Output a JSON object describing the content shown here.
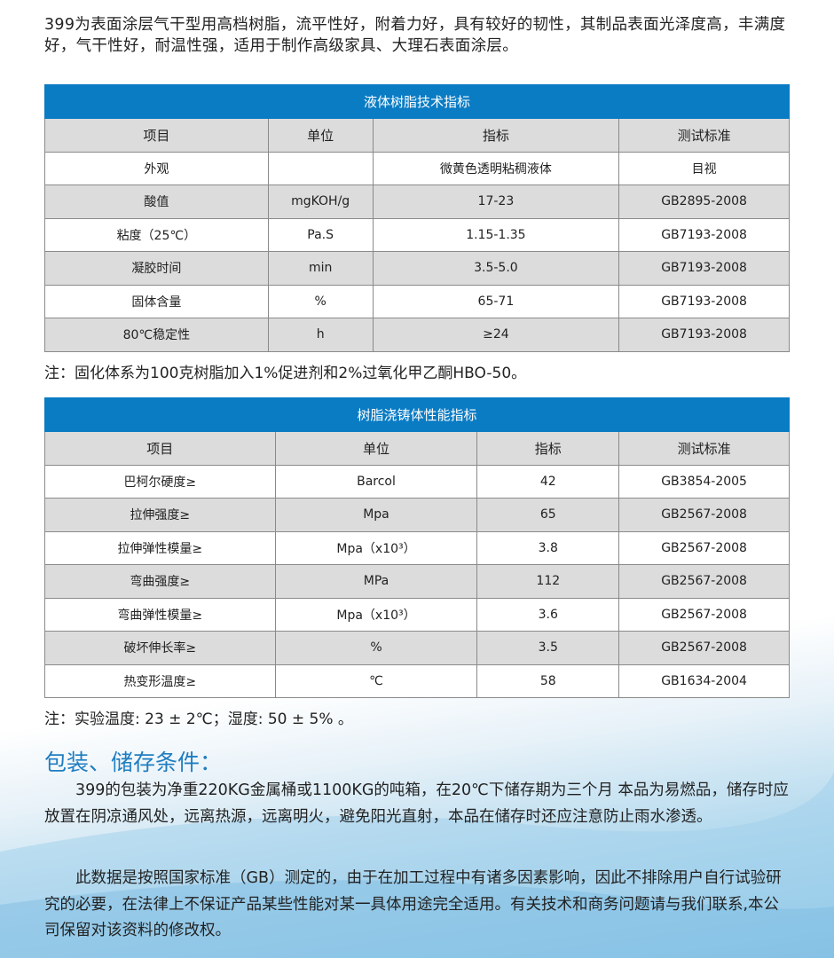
{
  "intro": "399为表面涂层气干型用高档树脂，流平性好，附着力好，具有较好的韧性，其制品表面光泽度高，丰满度好，气干性好，耐温性强，适用于制作高级家具、大理石表面涂层。",
  "table1": {
    "title": "液体树脂技术指标",
    "headers": [
      "项目",
      "单位",
      "指标",
      "测试标准"
    ],
    "rows": [
      [
        "外观",
        "",
        "微黄色透明粘稠液体",
        "目视"
      ],
      [
        "酸值",
        "mgKOH/g",
        "17-23",
        "GB2895-2008"
      ],
      [
        "粘度（25℃）",
        "Pa.S",
        "1.15-1.35",
        "GB7193-2008"
      ],
      [
        "凝胶时间",
        "min",
        "3.5-5.0",
        "GB7193-2008"
      ],
      [
        "固体含量",
        "%",
        "65-71",
        "GB7193-2008"
      ],
      [
        "80℃稳定性",
        "h",
        "≥24",
        "GB7193-2008"
      ]
    ]
  },
  "note1": "注：固化体系为100克树脂加入1%促进剂和2%过氧化甲乙酮HBO-50。",
  "table2": {
    "title": "树脂浇铸体性能指标",
    "headers": [
      "项目",
      "单位",
      "指标",
      "测试标准"
    ],
    "rows": [
      [
        "巴柯尔硬度≥",
        "Barcol",
        "42",
        "GB3854-2005"
      ],
      [
        "拉伸强度≥",
        "Mpa",
        "65",
        "GB2567-2008"
      ],
      [
        "拉伸弹性模量≥",
        "Mpa（x10³）",
        "3.8",
        "GB2567-2008"
      ],
      [
        "弯曲强度≥",
        "MPa",
        "112",
        "GB2567-2008"
      ],
      [
        "弯曲弹性模量≥",
        "Mpa（x10³）",
        "3.6",
        "GB2567-2008"
      ],
      [
        "破坏伸长率≥",
        "%",
        "3.5",
        "GB2567-2008"
      ],
      [
        "热变形温度≥",
        "℃",
        "58",
        "GB1634-2004"
      ]
    ]
  },
  "note2": "注：实验温度: 23 ± 2℃；湿度: 50 ± 5% 。",
  "storage": {
    "title": "包装、储存条件：",
    "para1": "399的包装为净重220KG金属桶或1100KG的吨箱，在20℃下储存期为三个月 本品为易燃品，储存时应放置在阴凉通风处，远离热源，远离明火，避免阳光直射，本品在储存时还应注意防止雨水渗透。",
    "para2": "此数据是按照国家标准（GB）测定的，由于在加工过程中有诸多因素影响，因此不排除用户自行试验研究的必要，在法律上不保证产品某些性能对某一具体用途完全适用。有关技术和商务问题请与我们联系,本公司保留对该资料的修改权。"
  },
  "colors": {
    "accent": "#0a7cc4",
    "header_gray": "#dcdcdc"
  }
}
